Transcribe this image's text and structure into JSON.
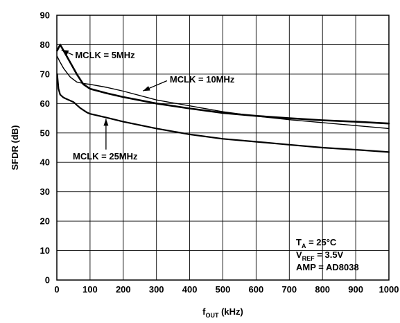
{
  "chart_data": {
    "type": "line",
    "xlabel": {
      "main": "f",
      "sub": "OUT",
      "tail": " (kHz)"
    },
    "ylabel": "SFDR (dB)",
    "xlim": [
      0,
      1000
    ],
    "ylim": [
      0,
      90
    ],
    "xticks": [
      0,
      100,
      200,
      300,
      400,
      500,
      600,
      700,
      800,
      900,
      1000
    ],
    "yticks": [
      0,
      10,
      20,
      30,
      40,
      50,
      60,
      70,
      80,
      90
    ],
    "grid": true,
    "series": [
      {
        "name": "MCLK = 5MHz",
        "stroke_px": 2.6,
        "x": [
          1,
          10,
          20,
          40,
          60,
          80,
          100,
          150,
          200,
          300,
          400,
          500,
          600,
          700,
          800,
          900,
          1000
        ],
        "y": [
          78,
          80,
          78,
          74,
          70,
          66.5,
          65,
          63.5,
          62.2,
          60,
          58.3,
          56.8,
          55.8,
          55,
          54.3,
          53.8,
          53.2
        ]
      },
      {
        "name": "MCLK = 10MHz",
        "stroke_px": 1.4,
        "x": [
          1,
          10,
          20,
          40,
          60,
          80,
          100,
          150,
          200,
          300,
          400,
          500,
          600,
          700,
          800,
          900,
          1000
        ],
        "y": [
          76,
          74,
          72,
          69,
          67.3,
          66.8,
          66.5,
          65.5,
          64.2,
          61.2,
          59.2,
          57.2,
          55.7,
          54.5,
          53.5,
          52.5,
          51.5
        ]
      },
      {
        "name": "MCLK = 25MHz",
        "stroke_px": 2.2,
        "x": [
          1,
          5,
          10,
          20,
          30,
          50,
          70,
          90,
          100,
          150,
          200,
          300,
          400,
          500,
          600,
          700,
          800,
          900,
          1000
        ],
        "y": [
          70,
          65,
          63,
          62,
          61.5,
          60.5,
          58.5,
          57,
          56.5,
          55.2,
          53.8,
          51.5,
          49.5,
          48,
          47,
          46,
          45,
          44.3,
          43.5
        ]
      }
    ],
    "annotations": [
      {
        "text": "MCLK = 5MHz",
        "target": [
          10,
          78.2
        ],
        "label_at": [
          55,
          76.5
        ]
      },
      {
        "text": "MCLK = 10MHz",
        "target": [
          255,
          63.8
        ],
        "label_at": [
          340,
          68.2
        ]
      },
      {
        "text": "MCLK = 25MHz",
        "target": [
          148,
          55.5
        ],
        "label_at": [
          48,
          42
        ]
      }
    ],
    "conditions": [
      {
        "main": "T",
        "sub": "A",
        "tail": " = 25°C"
      },
      {
        "main": "V",
        "sub": "REF",
        "tail": " = 3.5V"
      },
      {
        "main": "AMP = AD8038",
        "sub": "",
        "tail": ""
      }
    ]
  }
}
